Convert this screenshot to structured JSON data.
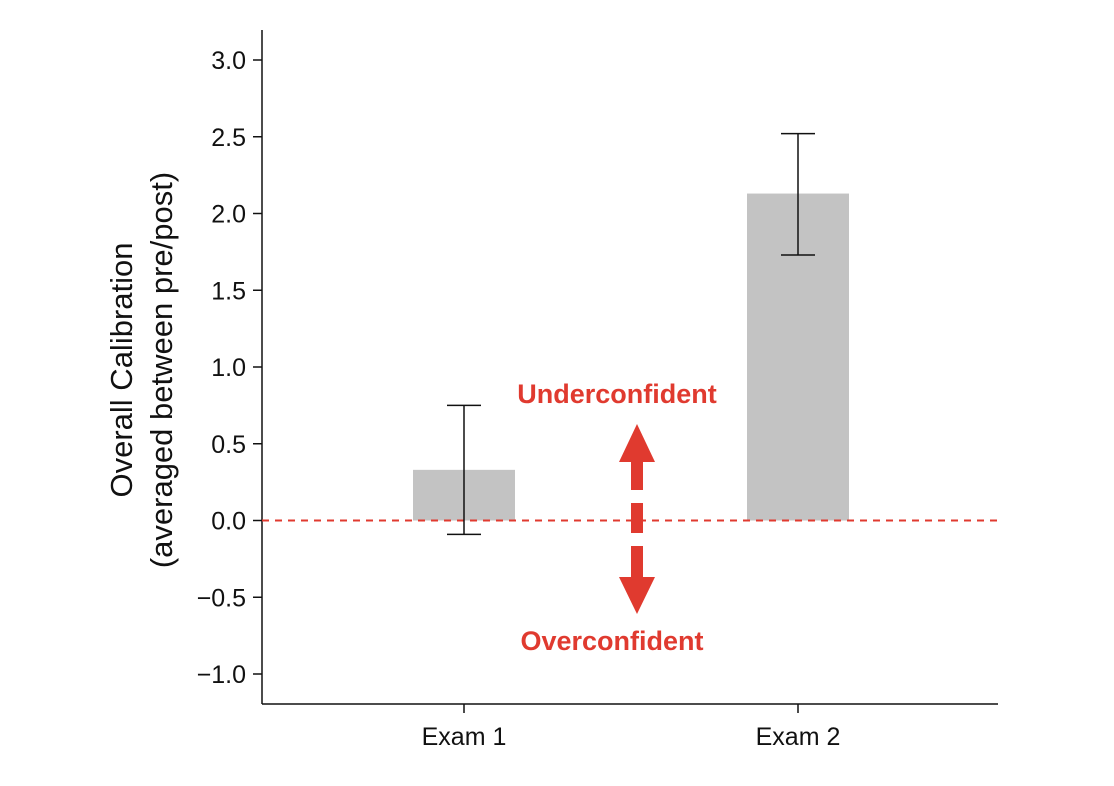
{
  "chart_data": {
    "type": "bar",
    "title": "",
    "xlabel": "",
    "ylabel": [
      "Overall Calibration",
      "(averaged between pre/post)"
    ],
    "categories": [
      "Exam 1",
      "Exam 2"
    ],
    "values": [
      0.33,
      2.13
    ],
    "error_bars": [
      {
        "low": -0.09,
        "high": 0.75
      },
      {
        "low": 1.73,
        "high": 2.52
      }
    ],
    "ylim": [
      -1.2,
      3.2
    ],
    "yticks": [
      3.0,
      2.5,
      2.0,
      1.5,
      1.0,
      0.5,
      0.0,
      -0.5,
      -1.0
    ],
    "ytick_labels": [
      "3.0",
      "2.5",
      "2.0",
      "1.5",
      "1.0",
      "0.5",
      "0.0",
      "−0.5",
      "−1.0"
    ],
    "reference_line": {
      "y": 0.0,
      "style": "dashed",
      "color": "#e03a2f"
    },
    "annotations": {
      "upper": "Underconfident",
      "lower": "Overconfident",
      "arrow": "double-headed vertical dashed arrow"
    },
    "grid": false,
    "legend": "none",
    "colors": {
      "bar": "#c3c3c3",
      "annotation": "#e03a2f",
      "axis": "#111111"
    }
  }
}
